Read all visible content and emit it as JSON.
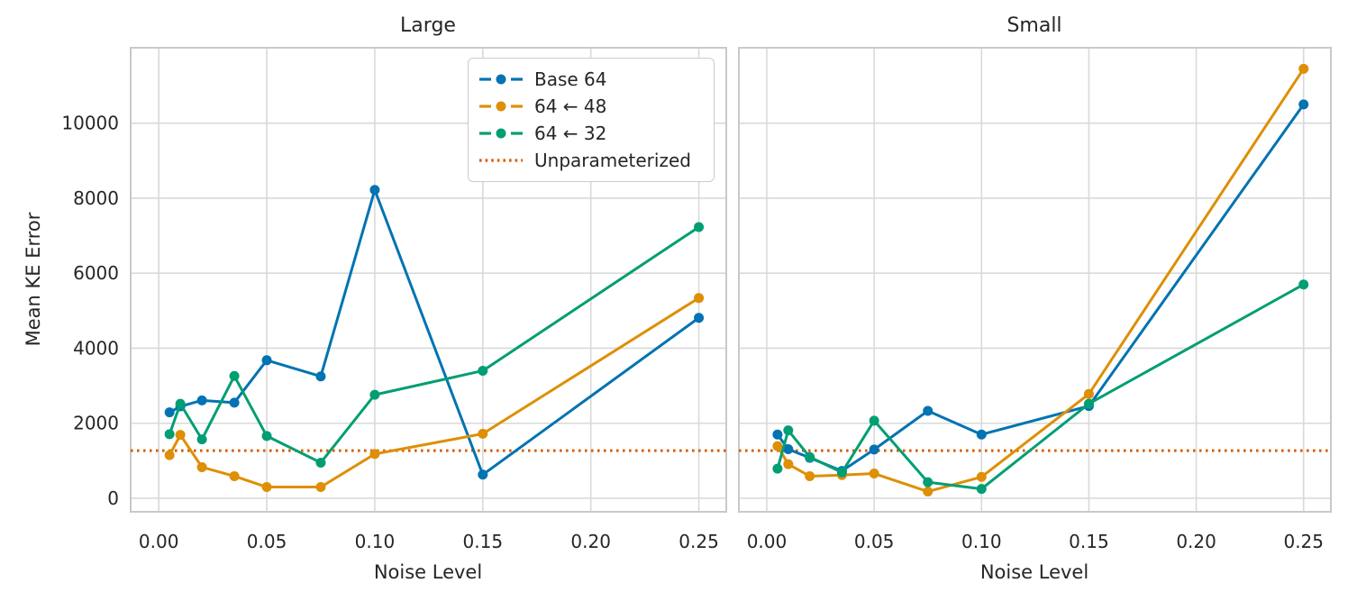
{
  "colors": {
    "blue": "#0173B2",
    "orange": "#DE8F05",
    "green": "#029E73",
    "baseline": "#D55E00",
    "text": "#262626",
    "grid": "#D9D9D9",
    "spine": "#C9C9C9"
  },
  "legend": {
    "entries": [
      {
        "label": "Base 64",
        "color": "#0173B2",
        "style": "line-marker"
      },
      {
        "label": "64 ← 48",
        "color": "#DE8F05",
        "style": "line-marker"
      },
      {
        "label": "64 ← 32",
        "color": "#029E73",
        "style": "line-marker"
      },
      {
        "label": "Unparameterized",
        "color": "#D55E00",
        "style": "dotted"
      }
    ]
  },
  "chart_data": [
    {
      "type": "line",
      "title": "Large",
      "xlabel": "Noise Level",
      "ylabel": "Mean KE Error",
      "x": [
        0.005,
        0.01,
        0.02,
        0.035,
        0.05,
        0.075,
        0.1,
        0.15,
        0.25
      ],
      "series": [
        {
          "name": "Base 64",
          "color": "#0173B2",
          "values": [
            2290,
            2450,
            2610,
            2550,
            3680,
            3250,
            8220,
            630,
            4810
          ]
        },
        {
          "name": "64 ← 48",
          "color": "#DE8F05",
          "values": [
            1150,
            1690,
            830,
            590,
            300,
            300,
            1180,
            1720,
            5340
          ]
        },
        {
          "name": "64 ← 32",
          "color": "#029E73",
          "values": [
            1710,
            2520,
            1570,
            3260,
            1660,
            950,
            2760,
            3400,
            7230
          ]
        }
      ],
      "baseline": {
        "name": "Unparameterized",
        "value": 1270,
        "color": "#D55E00"
      },
      "xlim": [
        -0.013,
        0.2627
      ],
      "ylim": [
        -360,
        12010
      ],
      "xticks": [
        0,
        0.05,
        0.1,
        0.15,
        0.2,
        0.25
      ],
      "xtick_labels": [
        "0.00",
        "0.05",
        "0.10",
        "0.15",
        "0.20",
        "0.25"
      ],
      "yticks": [
        0,
        2000,
        4000,
        6000,
        8000,
        10000
      ],
      "ytick_labels": [
        "0",
        "2000",
        "4000",
        "6000",
        "8000",
        "10000"
      ],
      "grid": true,
      "legend_visible": true
    },
    {
      "type": "line",
      "title": "Small",
      "xlabel": "Noise Level",
      "ylabel": "",
      "x": [
        0.005,
        0.01,
        0.02,
        0.035,
        0.05,
        0.075,
        0.1,
        0.15,
        0.25
      ],
      "series": [
        {
          "name": "Base 64",
          "color": "#0173B2",
          "values": [
            1700,
            1310,
            1080,
            730,
            1300,
            2330,
            1700,
            2460,
            10500
          ]
        },
        {
          "name": "64 ← 48",
          "color": "#DE8F05",
          "values": [
            1390,
            910,
            590,
            620,
            660,
            180,
            570,
            2780,
            11450
          ]
        },
        {
          "name": "64 ← 32",
          "color": "#029E73",
          "values": [
            790,
            1810,
            1100,
            690,
            2070,
            430,
            250,
            2520,
            5700
          ]
        }
      ],
      "baseline": {
        "name": "Unparameterized",
        "value": 1270,
        "color": "#D55E00"
      },
      "xlim": [
        -0.013,
        0.2627
      ],
      "ylim": [
        -360,
        12010
      ],
      "xticks": [
        0,
        0.05,
        0.1,
        0.15,
        0.2,
        0.25
      ],
      "xtick_labels": [
        "0.00",
        "0.05",
        "0.10",
        "0.15",
        "0.20",
        "0.25"
      ],
      "yticks": [
        0,
        2000,
        4000,
        6000,
        8000,
        10000
      ],
      "ytick_labels": [
        "0",
        "2000",
        "4000",
        "6000",
        "8000",
        "10000"
      ],
      "grid": true,
      "legend_visible": false
    }
  ]
}
